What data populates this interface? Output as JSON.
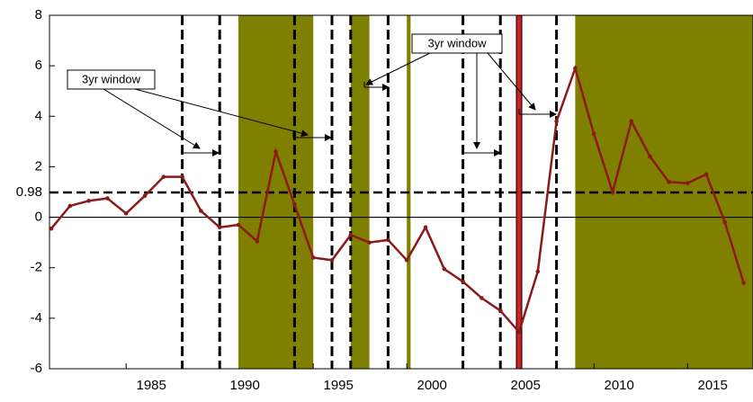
{
  "chart_data": {
    "type": "line",
    "x": [
      1981,
      1982,
      1983,
      1984,
      1985,
      1986,
      1987,
      1988,
      1989,
      1990,
      1991,
      1992,
      1993,
      1994,
      1995,
      1996,
      1997,
      1998,
      1999,
      2000,
      2001,
      2002,
      2003,
      2004,
      2005,
      2006,
      2007,
      2008,
      2009,
      2010,
      2011,
      2012,
      2013,
      2014,
      2015,
      2016,
      2017,
      2018
    ],
    "series": [
      {
        "color": "#8b1a1a",
        "values": [
          -0.45,
          0.45,
          0.65,
          0.75,
          0.15,
          0.85,
          1.6,
          1.6,
          0.25,
          -0.4,
          -0.3,
          -0.95,
          2.6,
          0.5,
          -1.6,
          -1.7,
          -0.7,
          -1.0,
          -0.9,
          -1.7,
          -0.4,
          -2.05,
          -2.55,
          -3.2,
          -3.7,
          -4.55,
          -2.15,
          3.8,
          5.9,
          3.3,
          1.0,
          3.8,
          2.4,
          1.4,
          1.35,
          1.7,
          -0.2,
          -2.6
        ]
      }
    ],
    "xlim": [
      1981,
      2018.5
    ],
    "xticks": [
      1985,
      1990,
      1995,
      2000,
      2005,
      2010,
      2015
    ],
    "ylim": [
      -6,
      8
    ],
    "yticks": [
      -6,
      -4,
      -2,
      0,
      0.98,
      2,
      4,
      6,
      8
    ],
    "hlines": [
      {
        "value": 0,
        "dashed": false
      },
      {
        "value": 0.98,
        "dashed": true
      }
    ],
    "shaded_periods": [
      [
        1991,
        1995
      ],
      [
        1997,
        1998
      ],
      [
        2000,
        2000.2
      ],
      [
        2009,
        2018.5
      ]
    ],
    "shade_color": "#7f7f00",
    "dashed_vlines": [
      1988,
      1990,
      1994,
      1996,
      1997,
      1999,
      2003,
      2005,
      2008
    ],
    "red_vline": 2006,
    "red_color": "#cc2222",
    "annotations": [
      "3yr window",
      "3yr window"
    ]
  }
}
